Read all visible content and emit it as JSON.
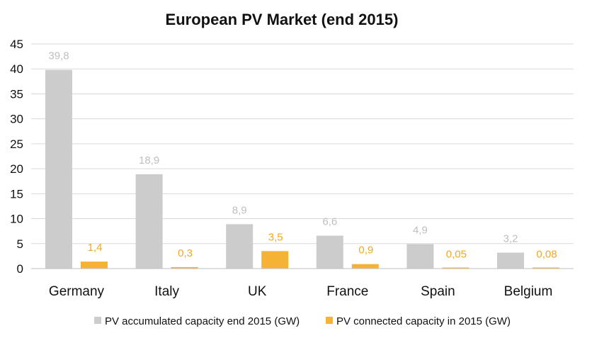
{
  "chart_data": {
    "type": "bar",
    "title": "European PV Market (end 2015)",
    "xlabel": "",
    "ylabel": "",
    "ylim": [
      0,
      45
    ],
    "yticks": [
      0,
      5,
      10,
      15,
      20,
      25,
      30,
      35,
      40,
      45
    ],
    "grid": true,
    "legend_position": "bottom",
    "categories": [
      "Germany",
      "Italy",
      "UK",
      "France",
      "Spain",
      "Belgium"
    ],
    "series": [
      {
        "name": "PV accumulated capacity end 2015 (GW)",
        "color": "#cccccc",
        "label_color": "#bfbfbf",
        "values": [
          39.8,
          18.9,
          8.9,
          6.6,
          4.9,
          3.2
        ],
        "labels": [
          "39,8",
          "18,9",
          "8,9",
          "6,6",
          "4,9",
          "3,2"
        ]
      },
      {
        "name": "PV connected capacity in 2015 (GW)",
        "color": "#f5b335",
        "label_color": "#f2a81f",
        "values": [
          1.4,
          0.3,
          3.5,
          0.9,
          0.05,
          0.08
        ],
        "labels": [
          "1,4",
          "0,3",
          "3,5",
          "0,9",
          "0,05",
          "0,08"
        ]
      }
    ]
  }
}
